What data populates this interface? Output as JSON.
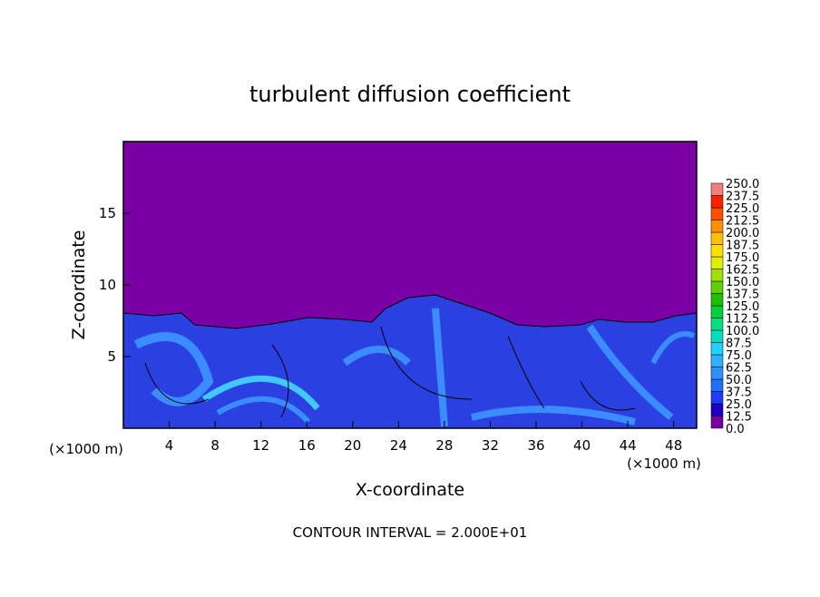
{
  "chart_data": {
    "type": "contour",
    "title": "turbulent diffusion coefficient",
    "x_label": "X-coordinate",
    "y_label": "Z-coordinate",
    "x_unit": "(×1000 m)",
    "x_unit_right": "(×1000 m)",
    "note": "CONTOUR INTERVAL = 2.000E+01",
    "xlim": [
      0,
      50
    ],
    "ylim": [
      0,
      20
    ],
    "xticks": [
      4,
      8,
      12,
      16,
      20,
      24,
      28,
      32,
      36,
      40,
      44,
      48
    ],
    "yticks": [
      5,
      10,
      15
    ],
    "colorbar_levels": [
      {
        "value": 0,
        "label": "0.0"
      },
      {
        "value": 12.5,
        "label": "12.5"
      },
      {
        "value": 25,
        "label": "25.0"
      },
      {
        "value": 37.5,
        "label": "37.5"
      },
      {
        "value": 50,
        "label": "50.0"
      },
      {
        "value": 62.5,
        "label": "62.5"
      },
      {
        "value": 75,
        "label": "75.0"
      },
      {
        "value": 87.5,
        "label": "87.5"
      },
      {
        "value": 100,
        "label": "100.0"
      },
      {
        "value": 112.5,
        "label": "112.5"
      },
      {
        "value": 125,
        "label": "125.0"
      },
      {
        "value": 137.5,
        "label": "137.5"
      },
      {
        "value": 150,
        "label": "150.0"
      },
      {
        "value": 162.5,
        "label": "162.5"
      },
      {
        "value": 175,
        "label": "175.0"
      },
      {
        "value": 187.5,
        "label": "187.5"
      },
      {
        "value": 200,
        "label": "200.0"
      },
      {
        "value": 212.5,
        "label": "212.5"
      },
      {
        "value": 225,
        "label": "225.0"
      },
      {
        "value": 237.5,
        "label": "237.5"
      },
      {
        "value": 250,
        "label": "250.0"
      }
    ],
    "colorbar_colors": [
      "#7800a0",
      "#2000c0",
      "#1e3cff",
      "#2070ff",
      "#3090ff",
      "#30b0ff",
      "#20d0ff",
      "#00e0c0",
      "#00e080",
      "#00d040",
      "#20c000",
      "#60d000",
      "#a0e000",
      "#e0f000",
      "#ffe000",
      "#ffc000",
      "#ff9000",
      "#ff5000",
      "#ff2000",
      "#f08080"
    ]
  }
}
